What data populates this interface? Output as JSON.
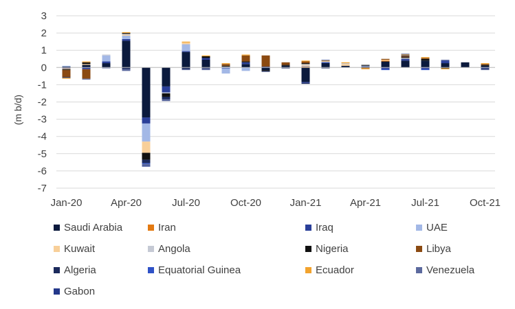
{
  "chart_data": {
    "type": "bar",
    "stacked": true,
    "title": "",
    "xlabel": "",
    "ylabel": "(m b/d)",
    "ylim": [
      -7,
      3
    ],
    "yticks": [
      3,
      2,
      1,
      0,
      -1,
      -2,
      -3,
      -4,
      -5,
      -6,
      -7
    ],
    "grid": true,
    "legend_position": "bottom",
    "categories": [
      "Jan-20",
      "Feb-20",
      "Mar-20",
      "Apr-20",
      "May-20",
      "Jun-20",
      "Jul-20",
      "Aug-20",
      "Sep-20",
      "Oct-20",
      "Nov-20",
      "Dec-20",
      "Jan-21",
      "Feb-21",
      "Mar-21",
      "Apr-21",
      "May-21",
      "Jun-21",
      "Jul-21",
      "Aug-21",
      "Sep-21",
      "Oct-21"
    ],
    "xtick_labels": [
      "Jan-20",
      "",
      "",
      "Apr-20",
      "",
      "",
      "Jul-20",
      "",
      "",
      "Oct-20",
      "",
      "",
      "Jan-21",
      "",
      "",
      "Apr-21",
      "",
      "",
      "Jul-21",
      "",
      "",
      "Oct-21"
    ],
    "series": [
      {
        "name": "Saudi Arabia",
        "color": "#0b1a3d",
        "values": [
          0.05,
          0.15,
          0.25,
          1.55,
          -2.9,
          -1.1,
          0.9,
          0.45,
          0,
          0.2,
          -0.15,
          0.1,
          -0.85,
          0.25,
          0.1,
          0.05,
          0.35,
          0.4,
          0.4,
          0.25,
          0.3,
          0.1
        ]
      },
      {
        "name": "Iran",
        "color": "#e37a12",
        "values": [
          0,
          0,
          0,
          0,
          0,
          0,
          0,
          0,
          0,
          0,
          0,
          0,
          0.05,
          0,
          0,
          0,
          0.05,
          0,
          0,
          0,
          0,
          0
        ]
      },
      {
        "name": "Iraq",
        "color": "#2a3f99",
        "values": [
          -0.05,
          -0.1,
          0.1,
          0.1,
          -0.35,
          -0.35,
          0.05,
          0.1,
          -0.05,
          0.1,
          0.05,
          0,
          -0.05,
          0.05,
          0,
          0,
          -0.1,
          0.1,
          -0.1,
          0.15,
          0,
          -0.05
        ]
      },
      {
        "name": "UAE",
        "color": "#a3b8e6",
        "values": [
          0.05,
          0,
          0.35,
          0.2,
          -1.05,
          0,
          0.4,
          0,
          -0.3,
          -0.2,
          0,
          0,
          0.05,
          0.05,
          0,
          0.05,
          0,
          0,
          0,
          0,
          0,
          0
        ]
      },
      {
        "name": "Kuwait",
        "color": "#f8cf99",
        "values": [
          -0.05,
          0.05,
          0,
          0.05,
          -0.65,
          0,
          0.1,
          0,
          0,
          0,
          0,
          0,
          0.05,
          0,
          0.1,
          0,
          0.05,
          0,
          0,
          0,
          0,
          0
        ]
      },
      {
        "name": "Angola",
        "color": "#c5c9d4",
        "values": [
          0,
          0,
          0.05,
          0.05,
          0,
          -0.05,
          0,
          0,
          0.05,
          0,
          0,
          0,
          0.05,
          0,
          0.05,
          0,
          0,
          0.05,
          0,
          0,
          0,
          0
        ]
      },
      {
        "name": "Nigeria",
        "color": "#111111",
        "values": [
          -0.05,
          0.1,
          0,
          0.05,
          -0.4,
          -0.2,
          0,
          0.1,
          0.05,
          0.05,
          -0.05,
          0.05,
          0.05,
          0,
          0,
          0.05,
          0,
          0.05,
          0.1,
          -0.05,
          0,
          0.05
        ]
      },
      {
        "name": "Libya",
        "color": "#8b4a12",
        "values": [
          -0.4,
          -0.55,
          0,
          0,
          0,
          0,
          0,
          0,
          0.1,
          0.35,
          0.65,
          0.15,
          0.1,
          0,
          0,
          -0.05,
          0.05,
          0.05,
          0.05,
          0,
          0,
          0.05
        ]
      },
      {
        "name": "Algeria",
        "color": "#1b2a5c",
        "values": [
          -0.05,
          0,
          0,
          -0.1,
          -0.2,
          -0.15,
          -0.1,
          -0.05,
          0,
          0,
          -0.05,
          -0.05,
          -0.05,
          -0.05,
          0,
          0,
          0,
          0.05,
          0,
          0,
          0,
          -0.05
        ]
      },
      {
        "name": "Equatorial Guinea",
        "color": "#2f52c7",
        "values": [
          0,
          0,
          0,
          0,
          -0.05,
          0,
          0,
          0,
          0,
          0,
          0,
          0,
          0,
          0,
          0,
          0,
          -0.05,
          0,
          -0.05,
          0,
          0,
          0
        ]
      },
      {
        "name": "Ecuador",
        "color": "#f2a32e",
        "values": [
          -0.05,
          0.05,
          0,
          0.05,
          0,
          0,
          0.05,
          0.05,
          0.05,
          0.05,
          0,
          0,
          0.05,
          0.05,
          0.05,
          -0.05,
          0,
          0.05,
          0.05,
          -0.05,
          0,
          0.05
        ]
      },
      {
        "name": "Venezuela",
        "color": "#5c6a9e",
        "values": [
          0,
          -0.05,
          -0.05,
          -0.1,
          -0.1,
          -0.1,
          -0.05,
          -0.1,
          0,
          0,
          0,
          0,
          0,
          0.05,
          0,
          0,
          0,
          0.05,
          0,
          0.05,
          0,
          -0.05
        ]
      },
      {
        "name": "Gabon",
        "color": "#24388a",
        "values": [
          0,
          0,
          0,
          0,
          -0.05,
          0,
          0,
          0,
          0,
          0,
          0,
          0,
          0,
          0,
          0,
          0,
          0,
          0,
          0,
          0,
          0,
          0
        ]
      }
    ]
  }
}
